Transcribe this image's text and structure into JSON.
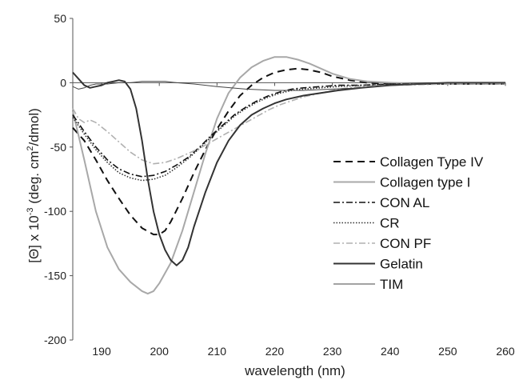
{
  "chart_data": {
    "type": "line",
    "xlabel": "wavelength (nm)",
    "ylabel": {
      "prefix": "[Θ] x 10",
      "exp1": "-3",
      "mid": " (deg. cm",
      "exp2": "2",
      "suffix": "/dmol)"
    },
    "xlim": [
      185,
      260
    ],
    "ylim": [
      -200,
      50
    ],
    "x_ticks": [
      190,
      200,
      210,
      220,
      230,
      240,
      250,
      260
    ],
    "y_ticks": [
      50,
      0,
      -50,
      -100,
      -150,
      -200
    ],
    "grid": false,
    "legend_position": "lower-right",
    "series": [
      {
        "name": "Collagen Type IV",
        "color": "#111111",
        "dash": "9,6",
        "width": 2,
        "points": [
          [
            185,
            -35
          ],
          [
            187,
            -45
          ],
          [
            189,
            -60
          ],
          [
            191,
            -76
          ],
          [
            193,
            -90
          ],
          [
            195,
            -103
          ],
          [
            197,
            -113
          ],
          [
            199,
            -118
          ],
          [
            200,
            -118
          ],
          [
            201,
            -115
          ],
          [
            202,
            -108
          ],
          [
            204,
            -90
          ],
          [
            206,
            -70
          ],
          [
            208,
            -52
          ],
          [
            210,
            -36
          ],
          [
            212,
            -22
          ],
          [
            214,
            -10
          ],
          [
            216,
            -2
          ],
          [
            218,
            4
          ],
          [
            220,
            8
          ],
          [
            222,
            10
          ],
          [
            224,
            11
          ],
          [
            226,
            10
          ],
          [
            228,
            8
          ],
          [
            230,
            5
          ],
          [
            233,
            2
          ],
          [
            236,
            0
          ],
          [
            240,
            -1
          ],
          [
            245,
            -1
          ],
          [
            250,
            -1
          ],
          [
            255,
            -1
          ],
          [
            260,
            -1
          ]
        ]
      },
      {
        "name": "Collagen type I",
        "color": "#a8a8a8",
        "dash": "",
        "width": 2,
        "points": [
          [
            185,
            -22
          ],
          [
            187,
            -60
          ],
          [
            189,
            -100
          ],
          [
            191,
            -128
          ],
          [
            193,
            -145
          ],
          [
            195,
            -155
          ],
          [
            197,
            -162
          ],
          [
            198,
            -164
          ],
          [
            199,
            -162
          ],
          [
            200,
            -156
          ],
          [
            202,
            -140
          ],
          [
            204,
            -115
          ],
          [
            206,
            -85
          ],
          [
            208,
            -55
          ],
          [
            210,
            -28
          ],
          [
            212,
            -8
          ],
          [
            214,
            4
          ],
          [
            216,
            12
          ],
          [
            218,
            17
          ],
          [
            220,
            20
          ],
          [
            222,
            20
          ],
          [
            224,
            18
          ],
          [
            226,
            15
          ],
          [
            228,
            11
          ],
          [
            230,
            7
          ],
          [
            233,
            3
          ],
          [
            236,
            1
          ],
          [
            240,
            0
          ],
          [
            245,
            -1
          ],
          [
            250,
            -1
          ],
          [
            255,
            -1
          ],
          [
            260,
            -1
          ]
        ]
      },
      {
        "name": "CON AL",
        "color": "#111111",
        "dash": "8,3,2,3",
        "width": 1.6,
        "points": [
          [
            185,
            -25
          ],
          [
            187,
            -38
          ],
          [
            189,
            -50
          ],
          [
            191,
            -60
          ],
          [
            193,
            -67
          ],
          [
            195,
            -71
          ],
          [
            197,
            -73
          ],
          [
            199,
            -72
          ],
          [
            201,
            -69
          ],
          [
            203,
            -64
          ],
          [
            205,
            -58
          ],
          [
            207,
            -50
          ],
          [
            209,
            -41
          ],
          [
            211,
            -33
          ],
          [
            213,
            -25
          ],
          [
            215,
            -19
          ],
          [
            217,
            -14
          ],
          [
            219,
            -10
          ],
          [
            221,
            -7
          ],
          [
            223,
            -5
          ],
          [
            225,
            -4
          ],
          [
            228,
            -3
          ],
          [
            231,
            -2
          ],
          [
            235,
            -2
          ],
          [
            240,
            -1
          ],
          [
            250,
            -1
          ],
          [
            260,
            -1
          ]
        ]
      },
      {
        "name": "CR",
        "color": "#333333",
        "dash": "1.5,2",
        "width": 1.6,
        "points": [
          [
            185,
            -27
          ],
          [
            187,
            -40
          ],
          [
            189,
            -52
          ],
          [
            191,
            -62
          ],
          [
            193,
            -70
          ],
          [
            195,
            -74
          ],
          [
            197,
            -76
          ],
          [
            199,
            -75
          ],
          [
            201,
            -72
          ],
          [
            203,
            -66
          ],
          [
            205,
            -59
          ],
          [
            207,
            -51
          ],
          [
            209,
            -42
          ],
          [
            211,
            -34
          ],
          [
            213,
            -26
          ],
          [
            215,
            -20
          ],
          [
            217,
            -15
          ],
          [
            219,
            -11
          ],
          [
            221,
            -8
          ],
          [
            223,
            -6
          ],
          [
            225,
            -5
          ],
          [
            228,
            -4
          ],
          [
            231,
            -3
          ],
          [
            235,
            -2
          ],
          [
            240,
            -1
          ],
          [
            250,
            -1
          ],
          [
            260,
            -1
          ]
        ]
      },
      {
        "name": "CON PF",
        "color": "#b0b0b0",
        "dash": "8,3,2,3",
        "width": 1.6,
        "points": [
          [
            185,
            -20
          ],
          [
            186,
            -28
          ],
          [
            187,
            -31
          ],
          [
            188,
            -29
          ],
          [
            189,
            -31
          ],
          [
            191,
            -38
          ],
          [
            193,
            -46
          ],
          [
            195,
            -54
          ],
          [
            197,
            -60
          ],
          [
            199,
            -63
          ],
          [
            201,
            -62
          ],
          [
            203,
            -59
          ],
          [
            205,
            -55
          ],
          [
            207,
            -51
          ],
          [
            209,
            -46
          ],
          [
            211,
            -41
          ],
          [
            213,
            -36
          ],
          [
            215,
            -31
          ],
          [
            217,
            -26
          ],
          [
            219,
            -21
          ],
          [
            221,
            -17
          ],
          [
            223,
            -14
          ],
          [
            225,
            -11
          ],
          [
            228,
            -8
          ],
          [
            231,
            -5
          ],
          [
            235,
            -3
          ],
          [
            240,
            -2
          ],
          [
            250,
            -1
          ],
          [
            260,
            -1
          ]
        ]
      },
      {
        "name": "Gelatin",
        "color": "#333333",
        "dash": "",
        "width": 2,
        "points": [
          [
            185,
            8
          ],
          [
            186,
            3
          ],
          [
            187,
            -2
          ],
          [
            188,
            -4
          ],
          [
            189,
            -3
          ],
          [
            190,
            -2
          ],
          [
            191,
            0
          ],
          [
            192,
            1
          ],
          [
            193,
            2
          ],
          [
            194,
            1
          ],
          [
            195,
            -5
          ],
          [
            196,
            -20
          ],
          [
            197,
            -45
          ],
          [
            198,
            -75
          ],
          [
            199,
            -100
          ],
          [
            200,
            -118
          ],
          [
            201,
            -130
          ],
          [
            202,
            -138
          ],
          [
            203,
            -142
          ],
          [
            204,
            -138
          ],
          [
            205,
            -128
          ],
          [
            206,
            -112
          ],
          [
            208,
            -85
          ],
          [
            210,
            -62
          ],
          [
            212,
            -45
          ],
          [
            214,
            -33
          ],
          [
            216,
            -25
          ],
          [
            218,
            -20
          ],
          [
            220,
            -16
          ],
          [
            222,
            -13
          ],
          [
            225,
            -10
          ],
          [
            228,
            -8
          ],
          [
            231,
            -6
          ],
          [
            235,
            -4
          ],
          [
            240,
            -2
          ],
          [
            245,
            -1
          ],
          [
            250,
            0
          ],
          [
            255,
            0
          ],
          [
            260,
            0
          ]
        ]
      },
      {
        "name": "TIM",
        "color": "#444444",
        "dash": "",
        "width": 1,
        "points": [
          [
            185,
            -3
          ],
          [
            186,
            -5
          ],
          [
            187,
            -4
          ],
          [
            188,
            -2
          ],
          [
            189,
            -1
          ],
          [
            191,
            -1
          ],
          [
            193,
            0
          ],
          [
            195,
            0
          ],
          [
            197,
            1
          ],
          [
            199,
            1
          ],
          [
            201,
            1
          ],
          [
            203,
            0
          ],
          [
            206,
            -1
          ],
          [
            210,
            -3
          ],
          [
            215,
            -5
          ],
          [
            220,
            -6
          ],
          [
            225,
            -6
          ],
          [
            230,
            -5
          ],
          [
            235,
            -4
          ],
          [
            240,
            -2
          ],
          [
            245,
            -1
          ],
          [
            250,
            0
          ],
          [
            255,
            0
          ],
          [
            260,
            0
          ]
        ]
      }
    ]
  }
}
